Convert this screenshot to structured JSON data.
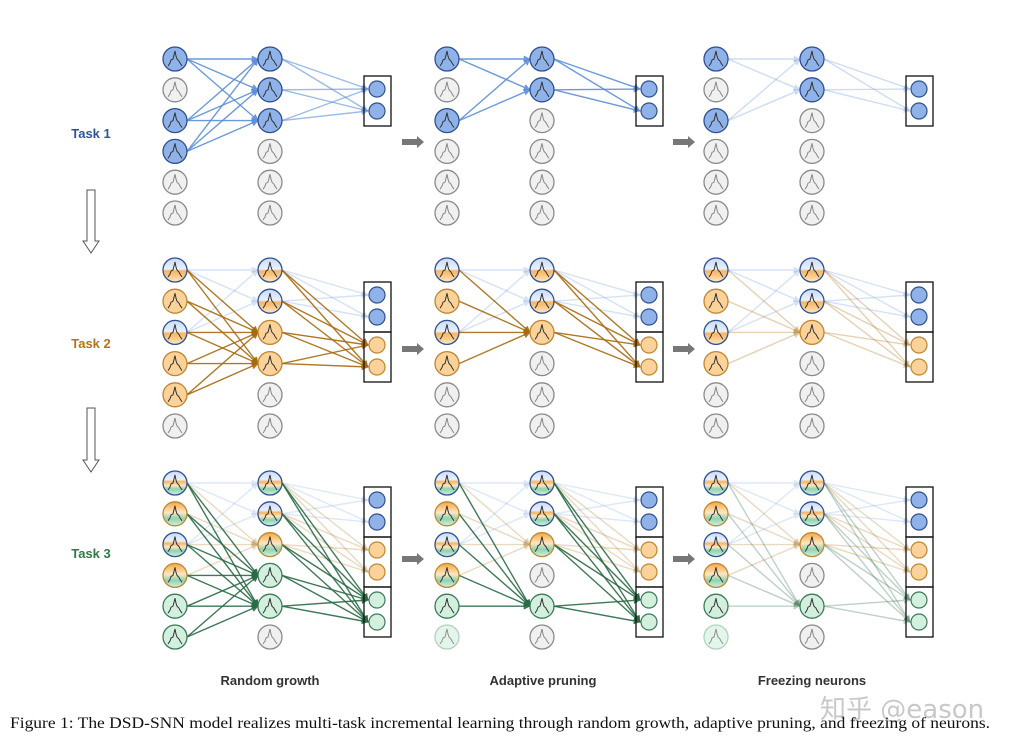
{
  "tasks": [
    {
      "label": "Task 1",
      "color": "#2e5597"
    },
    {
      "label": "Task 2",
      "color": "#b5731a"
    },
    {
      "label": "Task 3",
      "color": "#2e7a4a"
    }
  ],
  "stages": [
    "Random growth",
    "Adaptive pruning",
    "Freezing neurons"
  ],
  "caption": "Figure 1: The DSD-SNN model realizes multi-task incremental learning through random growth, adaptive pruning, and freezing of neurons.",
  "watermark": "知乎 @eason",
  "colors": {
    "blue": "#8fb3e8",
    "blue_stroke": "#2f4f8f",
    "blue_edge": "#5b8fd9",
    "orange": "#fbd29a",
    "orange_stroke": "#c0862f",
    "orange_edge": "#a86a10",
    "green": "#d3f0df",
    "green_stroke": "#3d7a58",
    "green_edge": "#2a6a45",
    "gray": "#f0f0f0",
    "gray_stroke": "#8a8a8a"
  },
  "panels": [
    [
      {
        "inputs": [
          "b",
          "g",
          "b",
          "b",
          "g",
          "g"
        ],
        "hidden": [
          "b",
          "b",
          "b",
          "g",
          "g",
          "g"
        ],
        "edges": [
          {
            "c": "blue",
            "o": 0.9,
            "from": [
              0,
              2,
              3
            ],
            "to": [
              0,
              1,
              2
            ],
            "out": false
          },
          {
            "c": "blue",
            "o": 0.6,
            "from": [
              0,
              1,
              2
            ],
            "to": [
              0,
              1
            ],
            "out": true
          }
        ]
      },
      {
        "inputs": [
          "b",
          "g",
          "b",
          "g",
          "g",
          "g"
        ],
        "hidden": [
          "b",
          "b",
          "g",
          "g",
          "g",
          "g"
        ],
        "edges": [
          {
            "c": "blue",
            "o": 0.9,
            "from": [
              0,
              2
            ],
            "to": [
              0,
              1
            ],
            "out": false
          },
          {
            "c": "blue",
            "o": 0.9,
            "from": [
              0,
              1
            ],
            "to": [
              0,
              1
            ],
            "out": true
          }
        ]
      },
      {
        "inputs": [
          "b",
          "g",
          "b",
          "g",
          "g",
          "g"
        ],
        "hidden": [
          "b",
          "b",
          "g",
          "g",
          "g",
          "g"
        ],
        "edges": [
          {
            "c": "blue",
            "o": 0.3,
            "from": [
              0,
              2
            ],
            "to": [
              0,
              1
            ],
            "out": false
          },
          {
            "c": "blue",
            "o": 0.3,
            "from": [
              0,
              1
            ],
            "to": [
              0,
              1
            ],
            "out": true
          }
        ]
      }
    ],
    [
      {
        "inputs": [
          "bo",
          "o",
          "bo",
          "o",
          "o",
          "g"
        ],
        "hidden": [
          "bo",
          "bo",
          "o",
          "o",
          "g",
          "g"
        ],
        "edges": [
          {
            "c": "blue",
            "o": 0.25,
            "from": [
              0,
              2
            ],
            "to": [
              0,
              1
            ],
            "out": false
          },
          {
            "c": "blue",
            "o": 0.25,
            "from": [
              0,
              1
            ],
            "to": [
              0,
              1
            ],
            "out": true
          },
          {
            "c": "orange",
            "o": 0.9,
            "from": [
              0,
              1,
              2,
              3,
              4
            ],
            "to": [
              2,
              3
            ],
            "out": false
          },
          {
            "c": "orange",
            "o": 0.9,
            "from": [
              0,
              1,
              2,
              3
            ],
            "to": [
              2,
              3
            ],
            "out": true
          }
        ]
      },
      {
        "inputs": [
          "bo",
          "o",
          "bo",
          "o",
          "g",
          "g"
        ],
        "hidden": [
          "bo",
          "bo",
          "o",
          "g",
          "g",
          "g"
        ],
        "edges": [
          {
            "c": "blue",
            "o": 0.25,
            "from": [
              0,
              2
            ],
            "to": [
              0,
              1
            ],
            "out": false
          },
          {
            "c": "blue",
            "o": 0.25,
            "from": [
              0,
              1
            ],
            "to": [
              0,
              1
            ],
            "out": true
          },
          {
            "c": "orange",
            "o": 0.9,
            "from": [
              0,
              1,
              2,
              3
            ],
            "to": [
              2
            ],
            "out": false
          },
          {
            "c": "orange",
            "o": 0.9,
            "from": [
              0,
              1,
              2
            ],
            "to": [
              2,
              3
            ],
            "out": true
          }
        ]
      },
      {
        "inputs": [
          "bo",
          "o",
          "bo",
          "o",
          "g",
          "g"
        ],
        "hidden": [
          "bo",
          "bo",
          "o",
          "g",
          "g",
          "g"
        ],
        "edges": [
          {
            "c": "blue",
            "o": 0.25,
            "from": [
              0,
              2
            ],
            "to": [
              0,
              1
            ],
            "out": false
          },
          {
            "c": "blue",
            "o": 0.25,
            "from": [
              0,
              1
            ],
            "to": [
              0,
              1
            ],
            "out": true
          },
          {
            "c": "orange",
            "o": 0.3,
            "from": [
              0,
              1,
              2,
              3
            ],
            "to": [
              2
            ],
            "out": false
          },
          {
            "c": "orange",
            "o": 0.3,
            "from": [
              0,
              1,
              2
            ],
            "to": [
              2,
              3
            ],
            "out": true
          }
        ]
      }
    ],
    [
      {
        "inputs": [
          "boG",
          "oG",
          "boG",
          "oG",
          "G",
          "G"
        ],
        "hidden": [
          "boG",
          "boG",
          "oG",
          "G",
          "G",
          "g"
        ],
        "edges": [
          {
            "c": "blue",
            "o": 0.2,
            "from": [
              0,
              2
            ],
            "to": [
              0,
              1
            ],
            "out": false
          },
          {
            "c": "blue",
            "o": 0.2,
            "from": [
              0,
              1
            ],
            "to": [
              0,
              1
            ],
            "out": true
          },
          {
            "c": "orange",
            "o": 0.25,
            "from": [
              0,
              1,
              2,
              3
            ],
            "to": [
              2
            ],
            "out": false
          },
          {
            "c": "orange",
            "o": 0.25,
            "from": [
              0,
              1,
              2
            ],
            "to": [
              2,
              3
            ],
            "out": true
          },
          {
            "c": "green",
            "o": 0.9,
            "from": [
              0,
              1,
              2,
              3,
              4,
              5
            ],
            "to": [
              3,
              4
            ],
            "out": false
          },
          {
            "c": "green",
            "o": 0.9,
            "from": [
              0,
              1,
              2,
              3,
              4
            ],
            "to": [
              4,
              5
            ],
            "out": true
          }
        ]
      },
      {
        "inputs": [
          "boG",
          "oG",
          "boG",
          "oG",
          "G",
          "Gf"
        ],
        "hidden": [
          "boG",
          "boG",
          "oG",
          "g",
          "G",
          "g"
        ],
        "edges": [
          {
            "c": "blue",
            "o": 0.2,
            "from": [
              0,
              2
            ],
            "to": [
              0,
              1
            ],
            "out": false
          },
          {
            "c": "blue",
            "o": 0.2,
            "from": [
              0,
              1
            ],
            "to": [
              0,
              1
            ],
            "out": true
          },
          {
            "c": "orange",
            "o": 0.25,
            "from": [
              0,
              1,
              2,
              3
            ],
            "to": [
              2
            ],
            "out": false
          },
          {
            "c": "orange",
            "o": 0.25,
            "from": [
              0,
              1,
              2
            ],
            "to": [
              2,
              3
            ],
            "out": true
          },
          {
            "c": "green",
            "o": 0.9,
            "from": [
              0,
              1,
              2,
              3,
              4
            ],
            "to": [
              4
            ],
            "out": false
          },
          {
            "c": "green",
            "o": 0.9,
            "from": [
              0,
              1,
              2,
              4
            ],
            "to": [
              4,
              5
            ],
            "out": true
          }
        ]
      },
      {
        "inputs": [
          "boG",
          "oG",
          "boG",
          "oG",
          "G",
          "Gf"
        ],
        "hidden": [
          "boG",
          "boG",
          "oG",
          "g",
          "G",
          "g"
        ],
        "edges": [
          {
            "c": "blue",
            "o": 0.2,
            "from": [
              0,
              2
            ],
            "to": [
              0,
              1
            ],
            "out": false
          },
          {
            "c": "blue",
            "o": 0.2,
            "from": [
              0,
              1
            ],
            "to": [
              0,
              1
            ],
            "out": true
          },
          {
            "c": "orange",
            "o": 0.25,
            "from": [
              0,
              1,
              2,
              3
            ],
            "to": [
              2
            ],
            "out": false
          },
          {
            "c": "orange",
            "o": 0.25,
            "from": [
              0,
              1,
              2
            ],
            "to": [
              2,
              3
            ],
            "out": true
          },
          {
            "c": "green",
            "o": 0.3,
            "from": [
              0,
              1,
              2,
              3,
              4
            ],
            "to": [
              4
            ],
            "out": false
          },
          {
            "c": "green",
            "o": 0.3,
            "from": [
              0,
              1,
              2,
              4
            ],
            "to": [
              4,
              5
            ],
            "out": true
          }
        ]
      }
    ]
  ]
}
